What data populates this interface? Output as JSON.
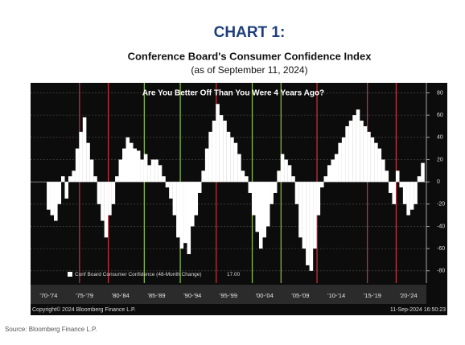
{
  "chart_data": {
    "type": "bar",
    "title": "CHART 1:",
    "subtitle": "Conference Board's Consumer Confidence Index",
    "date_note": "(as of September 11, 2024)",
    "annotation": "Are You Better Off Than You Were 4 Years Ago?",
    "x": [
      1972.5,
      1973,
      1973.5,
      1974,
      1974.5,
      1975,
      1975.5,
      1976,
      1976.5,
      1977,
      1977.5,
      1978,
      1978.5,
      1979,
      1979.5,
      1980,
      1980.5,
      1981,
      1981.5,
      1982,
      1982.5,
      1983,
      1983.5,
      1984,
      1984.5,
      1985,
      1985.5,
      1986,
      1986.5,
      1987,
      1987.5,
      1988,
      1988.5,
      1989,
      1989.5,
      1990,
      1990.5,
      1991,
      1991.5,
      1992,
      1992.5,
      1993,
      1993.5,
      1994,
      1994.5,
      1995,
      1995.5,
      1996,
      1996.5,
      1997,
      1997.5,
      1998,
      1998.5,
      1999,
      1999.5,
      2000,
      2000.5,
      2001,
      2001.5,
      2002,
      2002.5,
      2003,
      2003.5,
      2004,
      2004.5,
      2005,
      2005.5,
      2006,
      2006.5,
      2007,
      2007.5,
      2008,
      2008.5,
      2009,
      2009.5,
      2010,
      2010.5,
      2011,
      2011.5,
      2012,
      2012.5,
      2013,
      2013.5,
      2014,
      2014.5,
      2015,
      2015.5,
      2016,
      2016.5,
      2017,
      2017.5,
      2018,
      2018.5,
      2019,
      2019.5,
      2020,
      2020.5,
      2021,
      2021.5,
      2022,
      2022.5,
      2023,
      2023.5,
      2024,
      2024.5
    ],
    "series": [
      {
        "name": "Conf Board Consumer Confidence (48-Month Change)",
        "color": "#ffffff",
        "values": [
          -25,
          -30,
          -35,
          -20,
          5,
          -15,
          5,
          10,
          30,
          45,
          58,
          35,
          20,
          5,
          -20,
          -35,
          -50,
          -30,
          -20,
          5,
          20,
          30,
          40,
          35,
          30,
          28,
          20,
          25,
          15,
          20,
          20,
          15,
          5,
          -5,
          -15,
          -30,
          -50,
          -60,
          -55,
          -65,
          -40,
          -30,
          -10,
          10,
          30,
          45,
          55,
          70,
          60,
          55,
          45,
          40,
          35,
          25,
          10,
          5,
          -10,
          -30,
          -45,
          -60,
          -50,
          -40,
          -20,
          -10,
          10,
          25,
          20,
          15,
          5,
          -20,
          -50,
          -60,
          -75,
          -80,
          -60,
          -30,
          -5,
          5,
          15,
          20,
          25,
          35,
          40,
          50,
          55,
          60,
          65,
          55,
          50,
          45,
          40,
          35,
          30,
          20,
          10,
          -10,
          -20,
          10,
          -5,
          -20,
          -30,
          -25,
          -20,
          5,
          17
        ],
        "last_value": {
          "value": 17,
          "label": "17.00"
        }
      }
    ],
    "xlim": [
      1970,
      2025
    ],
    "ylim": [
      -91,
      89
    ],
    "xticks": [
      {
        "value": 1972.5,
        "label": "'70-'74"
      },
      {
        "value": 1977.5,
        "label": "'75-'79"
      },
      {
        "value": 1982.5,
        "label": "'80-'84"
      },
      {
        "value": 1987.5,
        "label": "'85-'89"
      },
      {
        "value": 1992.5,
        "label": "'90-'94"
      },
      {
        "value": 1997.5,
        "label": "'95-'99"
      },
      {
        "value": 2002.5,
        "label": "'00-'04"
      },
      {
        "value": 2007.5,
        "label": "'05-'09"
      },
      {
        "value": 2012.5,
        "label": "'10-'14"
      },
      {
        "value": 2017.5,
        "label": "'15-'19"
      },
      {
        "value": 2022.5,
        "label": "'20-'24"
      }
    ],
    "yticks": [
      80,
      60,
      40,
      20,
      0,
      -20,
      -40,
      -60,
      -80
    ],
    "grid": true,
    "vlines": [
      {
        "x": 1976.8,
        "color": "#d0323a"
      },
      {
        "x": 1980.8,
        "color": "#d0323a"
      },
      {
        "x": 1985.8,
        "color": "#8fc63f"
      },
      {
        "x": 1990.8,
        "color": "#8fc63f"
      },
      {
        "x": 1995.8,
        "color": "#d0323a"
      },
      {
        "x": 2000.8,
        "color": "#8fc63f"
      },
      {
        "x": 2004.8,
        "color": "#8fc63f"
      },
      {
        "x": 2009.8,
        "color": "#d0323a"
      },
      {
        "x": 2016.8,
        "color": "#d0323a"
      },
      {
        "x": 2020.8,
        "color": "#d0323a"
      }
    ],
    "copyright": "Copyright© 2024 Bloomberg Finance L.P.",
    "timestamp": "11-Sep-2024 16:50:23",
    "source": "Source: Bloomberg Finance L.P."
  }
}
